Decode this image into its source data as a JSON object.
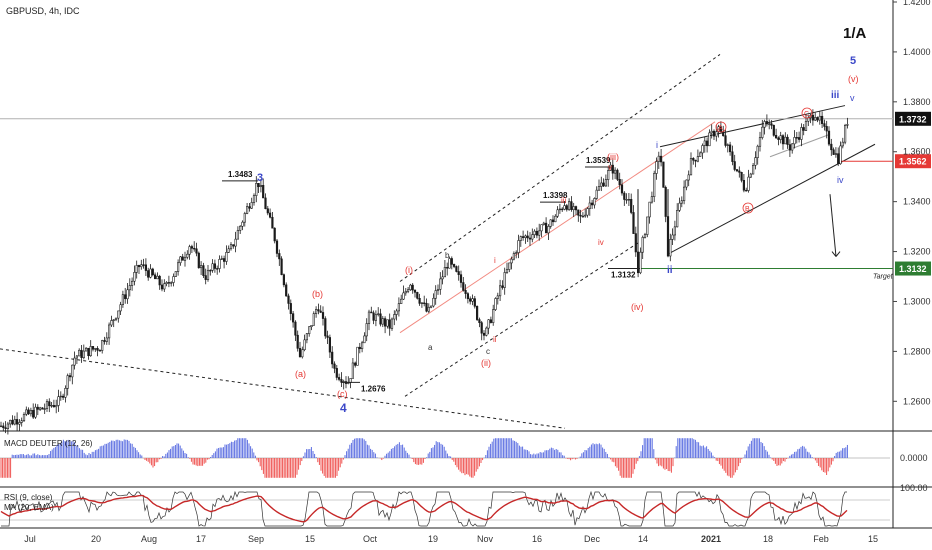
{
  "header": {
    "symbol": "GBPUSD, 4h, IDC",
    "count_label": "1/A"
  },
  "colors": {
    "up": "#1a1a1a",
    "down": "#1a1a1a",
    "blue_wave": "#3b47c8",
    "red_wave": "#e53935",
    "target_green": "#2e7d32",
    "price_tag": "#111111",
    "support_red": "#e53935",
    "macd_pos": "#5b6ee1",
    "macd_neg": "#ef5350",
    "rsi": "#333333",
    "rsi_ma": "#c62828"
  },
  "chart_data": [
    {
      "type": "candlestick",
      "title": "GBPUSD, 4h, IDC",
      "ylim": [
        1.25,
        1.43
      ],
      "price_ticks": [
        "1.4200",
        "1.4000",
        "1.3800",
        "1.3600",
        "1.3400",
        "1.3200",
        "1.3000",
        "1.2800",
        "1.2600"
      ],
      "tick_values": [
        1.42,
        1.4,
        1.38,
        1.36,
        1.34,
        1.32,
        1.3,
        1.28,
        1.26
      ],
      "x_tick_labels": [
        "Jul",
        "20",
        "Aug",
        "17",
        "Sep",
        "15",
        "Oct",
        "19",
        "Nov",
        "16",
        "Dec",
        "14",
        "2021",
        "18",
        "Feb",
        "15"
      ],
      "price_tags": [
        {
          "label": "1.3732",
          "value": 1.3732,
          "style": "last"
        },
        {
          "label": "1.3562",
          "value": 1.3562,
          "style": "support"
        },
        {
          "label": "1.3132",
          "value": 1.3132,
          "style": "target"
        }
      ],
      "target_label": "Target",
      "price_annotations": [
        {
          "label": "1.3483",
          "value": 1.3483
        },
        {
          "label": "1.2676",
          "value": 1.2676
        },
        {
          "label": "1.3398",
          "value": 1.3398
        },
        {
          "label": "1.3539",
          "value": 1.3539
        },
        {
          "label": "1.3132",
          "value": 1.3132
        }
      ],
      "wave_labels": [
        {
          "text": "3",
          "color": "blue"
        },
        {
          "text": "4",
          "color": "blue"
        },
        {
          "text": "(a)",
          "color": "red"
        },
        {
          "text": "(b)",
          "color": "red"
        },
        {
          "text": "(c)",
          "color": "red"
        },
        {
          "text": "(i)",
          "color": "red"
        },
        {
          "text": "a",
          "color": "black"
        },
        {
          "text": "b",
          "color": "black"
        },
        {
          "text": "c",
          "color": "black"
        },
        {
          "text": "i",
          "color": "red"
        },
        {
          "text": "ii",
          "color": "red"
        },
        {
          "text": "(ii)",
          "color": "red"
        },
        {
          "text": "iii",
          "color": "red"
        },
        {
          "text": "iv",
          "color": "red"
        },
        {
          "text": "v",
          "color": "red"
        },
        {
          "text": "(iii)",
          "color": "red"
        },
        {
          "text": "(iv)",
          "color": "red"
        },
        {
          "text": "i",
          "color": "blue"
        },
        {
          "text": "ii",
          "color": "blue"
        },
        {
          "text": "iii",
          "color": "blue"
        },
        {
          "text": "iv",
          "color": "blue"
        },
        {
          "text": "v",
          "color": "blue"
        },
        {
          "text": "5",
          "color": "blue"
        },
        {
          "text": "(v)",
          "color": "red"
        },
        {
          "text": "A",
          "color": "red"
        },
        {
          "text": "B",
          "color": "red"
        },
        {
          "text": "C",
          "color": "red"
        }
      ],
      "swings": [
        [
          0,
          1.25
        ],
        [
          60,
          1.26
        ],
        [
          75,
          1.278
        ],
        [
          100,
          1.282
        ],
        [
          140,
          1.315
        ],
        [
          165,
          1.305
        ],
        [
          190,
          1.323
        ],
        [
          205,
          1.31
        ],
        [
          230,
          1.32
        ],
        [
          258,
          1.3483
        ],
        [
          275,
          1.325
        ],
        [
          300,
          1.278
        ],
        [
          318,
          1.299
        ],
        [
          335,
          1.272
        ],
        [
          348,
          1.2676
        ],
        [
          370,
          1.295
        ],
        [
          390,
          1.29
        ],
        [
          410,
          1.308
        ],
        [
          428,
          1.295
        ],
        [
          448,
          1.316
        ],
        [
          470,
          1.302
        ],
        [
          485,
          1.286
        ],
        [
          500,
          1.305
        ],
        [
          520,
          1.325
        ],
        [
          548,
          1.33
        ],
        [
          565,
          1.3398
        ],
        [
          580,
          1.333
        ],
        [
          612,
          1.3539
        ],
        [
          630,
          1.338
        ],
        [
          638,
          1.3132
        ],
        [
          660,
          1.362
        ],
        [
          668,
          1.32
        ],
        [
          690,
          1.355
        ],
        [
          718,
          1.37
        ],
        [
          745,
          1.345
        ],
        [
          765,
          1.372
        ],
        [
          790,
          1.362
        ],
        [
          815,
          1.376
        ],
        [
          838,
          1.357
        ],
        [
          848,
          1.3735
        ]
      ]
    },
    {
      "type": "bar",
      "title": "MACD DEUTER (12, 26)",
      "ylim": [
        -0.012,
        0.012
      ],
      "tick_labels": [
        "0.0000"
      ]
    },
    {
      "type": "line",
      "title": "RSI (9, close)",
      "overlay_title": "MA (20, EMA)",
      "tick_labels": [
        "100.00"
      ],
      "ylim": [
        0,
        100
      ]
    }
  ]
}
